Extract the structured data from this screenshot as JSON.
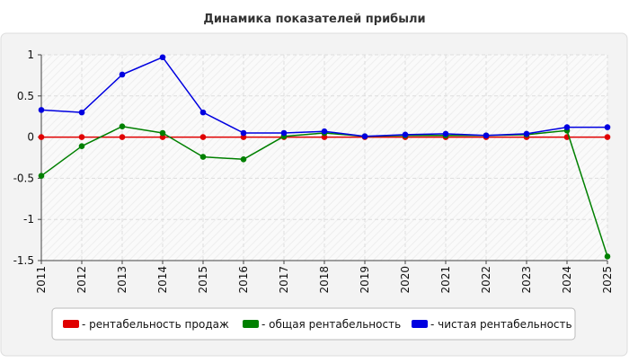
{
  "chart_data": {
    "type": "line",
    "title": "Динамика показателей прибыли",
    "xlabel": "",
    "ylabel": "",
    "ylim": [
      -1.5,
      1
    ],
    "yticks": [
      1,
      0.5,
      0,
      -0.5,
      -1,
      -1.5
    ],
    "grid": true,
    "legend_position": "bottom",
    "categories": [
      "2011",
      "2012",
      "2013",
      "2014",
      "2015",
      "2016",
      "2017",
      "2018",
      "2019",
      "2020",
      "2021",
      "2022",
      "2023",
      "2024",
      "2025"
    ],
    "series": [
      {
        "name": "- рентабельность продаж",
        "color": "#e00000",
        "values": [
          0,
          0,
          0,
          0,
          0,
          0,
          0,
          0,
          0,
          0,
          0,
          0,
          0,
          0,
          0
        ]
      },
      {
        "name": "- общая рентабельность",
        "color": "#008000",
        "values": [
          -0.47,
          -0.11,
          0.13,
          0.05,
          -0.24,
          -0.27,
          0.01,
          0.05,
          0.01,
          0.02,
          0.02,
          0.02,
          0.03,
          0.08,
          -1.45
        ]
      },
      {
        "name": "- чистая рентабельность",
        "color": "#0000e0",
        "values": [
          0.33,
          0.3,
          0.76,
          0.97,
          0.3,
          0.05,
          0.05,
          0.07,
          0.01,
          0.03,
          0.04,
          0.02,
          0.04,
          0.12,
          0.12
        ]
      }
    ]
  }
}
